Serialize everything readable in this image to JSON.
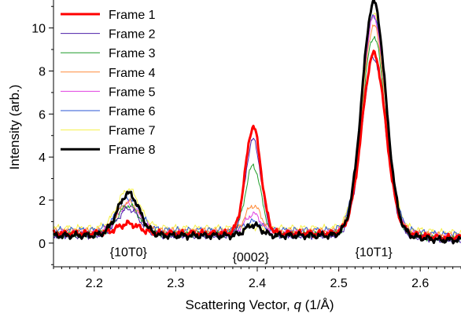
{
  "chart_data": {
    "type": "line",
    "title": "",
    "xlabel_prefix": "Scattering Vector, ",
    "xlabel_var": "q",
    "xlabel_suffix": " (1/Å)",
    "ylabel": "Intensity (arb.)",
    "xlim": [
      2.15,
      2.65
    ],
    "ylim": [
      -1.1,
      11.3
    ],
    "xticks": [
      2.2,
      2.3,
      2.4,
      2.5,
      2.6
    ],
    "xtick_labels": [
      "2.2",
      "2.3",
      "2.4",
      "2.5",
      "2.6"
    ],
    "yticks": [
      0,
      2,
      4,
      6,
      8,
      10
    ],
    "ytick_labels": [
      "0",
      "2",
      "4",
      "6",
      "8",
      "10"
    ],
    "grid": false,
    "legend_position": "top-left",
    "annotations": [
      {
        "text": "{10T0}",
        "x": 2.242,
        "y": -0.6
      },
      {
        "text": "{0002}",
        "x": 2.392,
        "y": -0.85
      },
      {
        "text": "{10T1}",
        "x": 2.543,
        "y": -0.6
      }
    ],
    "peak_centers": [
      2.242,
      2.395,
      2.543
    ],
    "series": [
      {
        "name": "Frame 1",
        "color": "#ff0000",
        "width": 3.0,
        "baseline": 0.45,
        "peaks": [
          0.9,
          5.4,
          8.8
        ]
      },
      {
        "name": "Frame 2",
        "color": "#4b1fa8",
        "width": 1.0,
        "baseline": 0.35,
        "peaks": [
          1.6,
          4.8,
          8.6
        ]
      },
      {
        "name": "Frame 3",
        "color": "#1f9c2a",
        "width": 1.0,
        "baseline": 0.4,
        "peaks": [
          1.75,
          3.6,
          9.6
        ]
      },
      {
        "name": "Frame 4",
        "color": "#ff8c3a",
        "width": 1.0,
        "baseline": 0.55,
        "peaks": [
          1.9,
          1.75,
          10.1
        ]
      },
      {
        "name": "Frame 5",
        "color": "#e040e0",
        "width": 1.0,
        "baseline": 0.5,
        "peaks": [
          1.8,
          1.35,
          10.5
        ]
      },
      {
        "name": "Frame 6",
        "color": "#2a55d6",
        "width": 1.0,
        "baseline": 0.6,
        "peaks": [
          2.1,
          1.0,
          10.6
        ]
      },
      {
        "name": "Frame 7",
        "color": "#f5f04a",
        "width": 1.0,
        "baseline": 0.7,
        "peaks": [
          2.5,
          0.75,
          10.7
        ]
      },
      {
        "name": "Frame 8",
        "color": "#000000",
        "width": 3.0,
        "baseline": 0.35,
        "peaks": [
          2.3,
          0.85,
          11.2
        ]
      }
    ]
  }
}
